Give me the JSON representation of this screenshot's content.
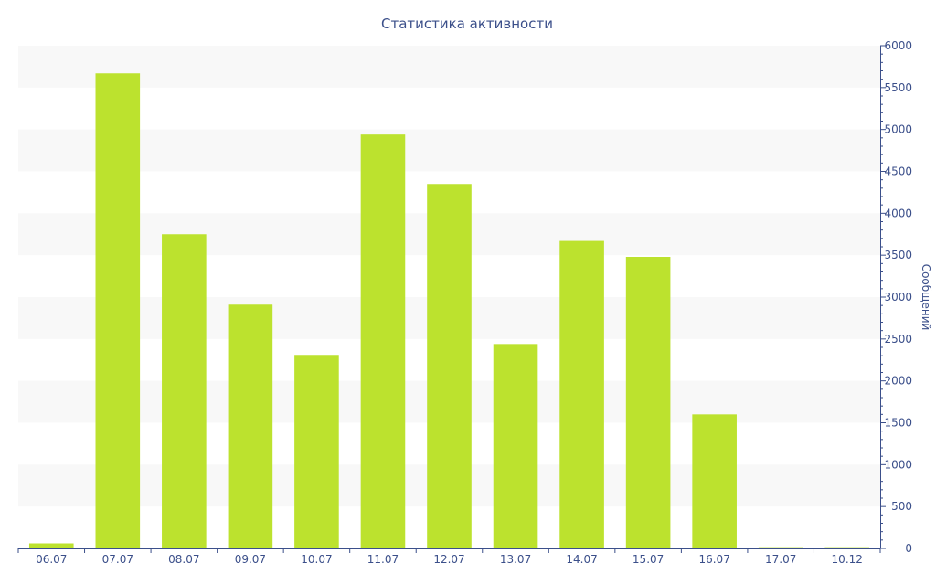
{
  "chart_data": {
    "type": "bar",
    "title": "Статистика активности",
    "xlabel": "",
    "ylabel": "Сообщений",
    "y_axis_side": "right",
    "ylim": [
      0,
      6000
    ],
    "y_ticks": [
      0,
      500,
      1000,
      1500,
      2000,
      2500,
      3000,
      3500,
      4000,
      4500,
      5000,
      5500,
      6000
    ],
    "categories": [
      "06.07",
      "07.07",
      "08.07",
      "09.07",
      "10.07",
      "11.07",
      "12.07",
      "13.07",
      "14.07",
      "15.07",
      "16.07",
      "17.07",
      "10.12"
    ],
    "values": [
      60,
      5670,
      3750,
      2910,
      2310,
      4940,
      4350,
      2440,
      3670,
      3480,
      1600,
      15,
      15
    ],
    "grid": true,
    "bar_color": "#bce22e",
    "band_color": "#f8f8f8",
    "axis_color": "#3b4f8a"
  }
}
